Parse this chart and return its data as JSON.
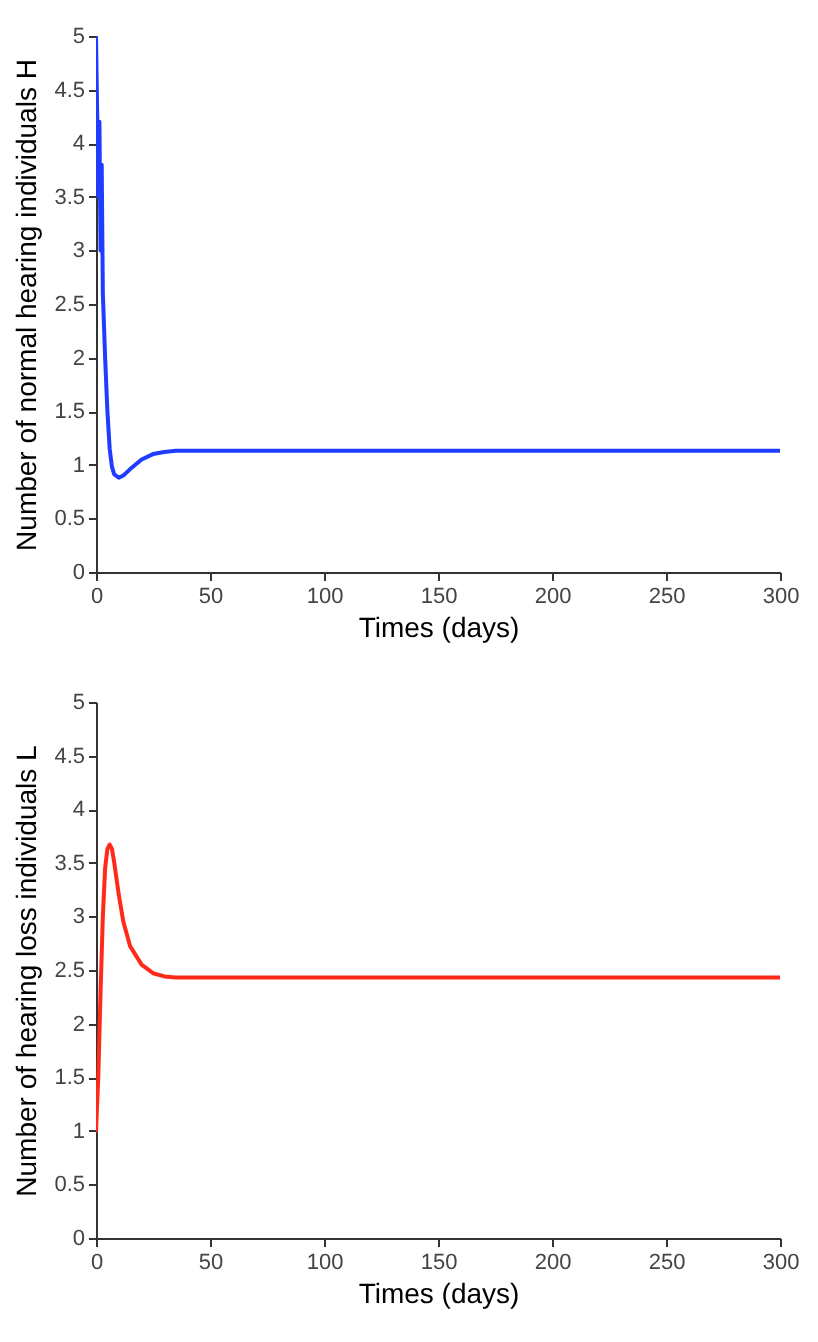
{
  "chart_data": [
    {
      "type": "line",
      "xlabel": "Times (days)",
      "ylabel": "Number of normal hearing individuals H",
      "xlim": [
        0,
        300
      ],
      "xticks": [
        0,
        50,
        100,
        150,
        200,
        250,
        300
      ],
      "ylim": [
        0,
        5
      ],
      "yticks": [
        0,
        0.5,
        1,
        1.5,
        2,
        2.5,
        3,
        3.5,
        4,
        4.5,
        5
      ],
      "grid": false,
      "series": [
        {
          "color": "#1f3cff",
          "x": [
            0,
            0.5,
            1,
            1.5,
            2,
            2.5,
            3,
            4,
            5,
            6,
            7,
            8,
            10,
            12,
            15,
            20,
            25,
            30,
            35,
            50,
            100,
            150,
            200,
            250,
            300
          ],
          "values": [
            5,
            4.3,
            3.5,
            4.2,
            3.0,
            3.8,
            2.6,
            2.0,
            1.5,
            1.15,
            0.98,
            0.91,
            0.88,
            0.9,
            0.96,
            1.05,
            1.1,
            1.12,
            1.13,
            1.13,
            1.13,
            1.13,
            1.13,
            1.13,
            1.13
          ]
        }
      ]
    },
    {
      "type": "line",
      "xlabel": "Times (days)",
      "ylabel": "Number of  hearing loss individuals L",
      "xlim": [
        0,
        300
      ],
      "xticks": [
        0,
        50,
        100,
        150,
        200,
        250,
        300
      ],
      "ylim": [
        0,
        5
      ],
      "yticks": [
        0,
        0.5,
        1,
        1.5,
        2,
        2.5,
        3,
        3.5,
        4,
        4.5,
        5
      ],
      "grid": false,
      "series": [
        {
          "color": "#ff2a1a",
          "x": [
            0,
            1,
            2,
            3,
            4,
            5,
            6,
            7,
            8,
            10,
            12,
            15,
            20,
            25,
            30,
            35,
            50,
            100,
            150,
            200,
            250,
            300
          ],
          "values": [
            1,
            1.5,
            2.3,
            3.0,
            3.45,
            3.63,
            3.67,
            3.63,
            3.5,
            3.2,
            2.95,
            2.72,
            2.55,
            2.47,
            2.44,
            2.43,
            2.43,
            2.43,
            2.43,
            2.43,
            2.43,
            2.43
          ]
        }
      ]
    }
  ]
}
